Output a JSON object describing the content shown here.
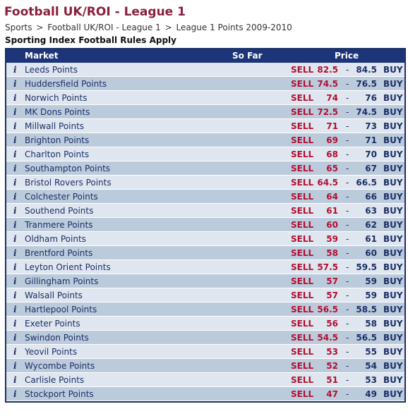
{
  "page": {
    "title": "Football UK/ROI - League 1",
    "breadcrumb": [
      "Sports",
      "Football UK/ROI - League 1",
      "League 1 Points 2009-2010"
    ],
    "breadcrumb_separator": ">",
    "rules_note": "Sporting Index Football Rules Apply"
  },
  "table": {
    "headers": {
      "market": "Market",
      "so_far": "So Far",
      "price": "Price"
    },
    "info_glyph": "i",
    "sell_label": "SELL",
    "buy_label": "BUY",
    "dash": "-",
    "rows": [
      {
        "market": "Leeds Points",
        "sell": "82.5",
        "buy": "84.5"
      },
      {
        "market": "Huddersfield Points",
        "sell": "74.5",
        "buy": "76.5"
      },
      {
        "market": "Norwich Points",
        "sell": "74",
        "buy": "76"
      },
      {
        "market": "MK Dons Points",
        "sell": "72.5",
        "buy": "74.5"
      },
      {
        "market": "Millwall Points",
        "sell": "71",
        "buy": "73"
      },
      {
        "market": "Brighton Points",
        "sell": "69",
        "buy": "71"
      },
      {
        "market": "Charlton Points",
        "sell": "68",
        "buy": "70"
      },
      {
        "market": "Southampton Points",
        "sell": "65",
        "buy": "67"
      },
      {
        "market": "Bristol Rovers Points",
        "sell": "64.5",
        "buy": "66.5"
      },
      {
        "market": "Colchester Points",
        "sell": "64",
        "buy": "66"
      },
      {
        "market": "Southend Points",
        "sell": "61",
        "buy": "63"
      },
      {
        "market": "Tranmere Points",
        "sell": "60",
        "buy": "62"
      },
      {
        "market": "Oldham Points",
        "sell": "59",
        "buy": "61"
      },
      {
        "market": "Brentford Points",
        "sell": "58",
        "buy": "60"
      },
      {
        "market": "Leyton Orient Points",
        "sell": "57.5",
        "buy": "59.5"
      },
      {
        "market": "Gillingham Points",
        "sell": "57",
        "buy": "59"
      },
      {
        "market": "Walsall Points",
        "sell": "57",
        "buy": "59"
      },
      {
        "market": "Hartlepool Points",
        "sell": "56.5",
        "buy": "58.5"
      },
      {
        "market": "Exeter Points",
        "sell": "56",
        "buy": "58"
      },
      {
        "market": "Swindon Points",
        "sell": "54.5",
        "buy": "56.5"
      },
      {
        "market": "Yeovil Points",
        "sell": "53",
        "buy": "55"
      },
      {
        "market": "Wycombe Points",
        "sell": "52",
        "buy": "54"
      },
      {
        "market": "Carlisle Points",
        "sell": "51",
        "buy": "53"
      },
      {
        "market": "Stockport Points",
        "sell": "47",
        "buy": "49"
      }
    ]
  },
  "colors": {
    "title": "#8a1f3c",
    "header_bg": "#1b3578",
    "row_light": "#dfe6ef",
    "row_dark": "#bccbdc",
    "sell": "#b01030",
    "buy": "#1b2f66"
  }
}
